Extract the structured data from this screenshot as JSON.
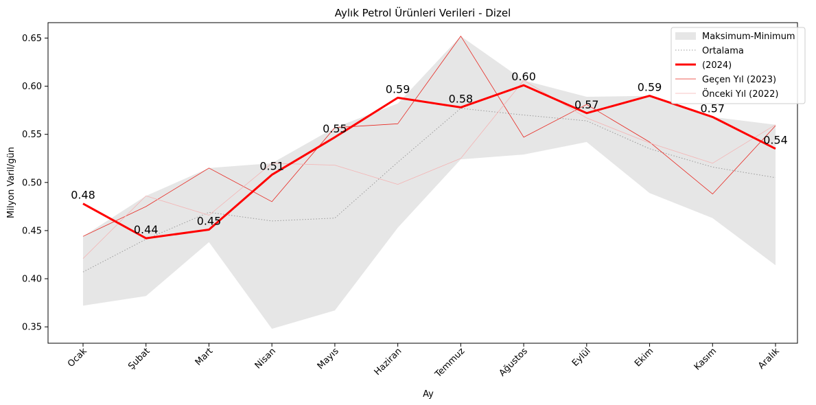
{
  "chart_data": {
    "type": "line",
    "title": "Aylık Petrol Ürünleri Verileri - Dizel",
    "xlabel": "Ay",
    "ylabel": "Milyon Varil/gün",
    "categories": [
      "Ocak",
      "Şubat",
      "Mart",
      "Nisan",
      "Mayıs",
      "Haziran",
      "Temmuz",
      "Ağustos",
      "Eylül",
      "Ekim",
      "Kasım",
      "Aralık"
    ],
    "ylim": [
      0.333,
      0.666
    ],
    "yticks": [
      "0.35",
      "0.40",
      "0.45",
      "0.50",
      "0.55",
      "0.60",
      "0.65"
    ],
    "grid": false,
    "legend_position": "top-right",
    "band": {
      "name": "Maksimum-Minimum",
      "color": "#e6e6e6",
      "max": [
        0.444,
        0.486,
        0.515,
        0.52,
        0.557,
        0.582,
        0.652,
        0.606,
        0.589,
        0.59,
        0.568,
        0.56
      ],
      "min": [
        0.372,
        0.382,
        0.438,
        0.348,
        0.367,
        0.453,
        0.524,
        0.529,
        0.542,
        0.489,
        0.463,
        0.414
      ]
    },
    "series": [
      {
        "name": "Ortalama",
        "color": "#999999",
        "style": "dotted",
        "values": [
          0.407,
          0.441,
          0.469,
          0.46,
          0.463,
          0.521,
          0.577,
          0.57,
          0.564,
          0.535,
          0.516,
          0.505
        ]
      },
      {
        "name": " (2024)",
        "color": "#ff0000",
        "style": "thick",
        "labels": [
          "0.48",
          "0.44",
          "0.45",
          "0.51",
          "0.55",
          "0.59",
          "0.58",
          "0.60",
          "0.57",
          "0.59",
          "0.57",
          "0.54"
        ],
        "values": [
          0.478,
          0.442,
          0.451,
          0.508,
          0.547,
          0.588,
          0.578,
          0.601,
          0.572,
          0.59,
          0.568,
          0.535
        ]
      },
      {
        "name": "Geçen Yıl (2023)",
        "color": "#e8261f",
        "style": "thin",
        "values": [
          0.444,
          0.475,
          0.515,
          0.48,
          0.557,
          0.561,
          0.652,
          0.547,
          0.581,
          0.542,
          0.488,
          0.559
        ]
      },
      {
        "name": "Önceki Yıl (2022)",
        "color": "#f4b3b3",
        "style": "thin",
        "values": [
          0.421,
          0.486,
          0.466,
          0.52,
          0.518,
          0.498,
          0.525,
          0.606,
          0.567,
          0.541,
          0.52,
          0.56
        ]
      }
    ]
  }
}
